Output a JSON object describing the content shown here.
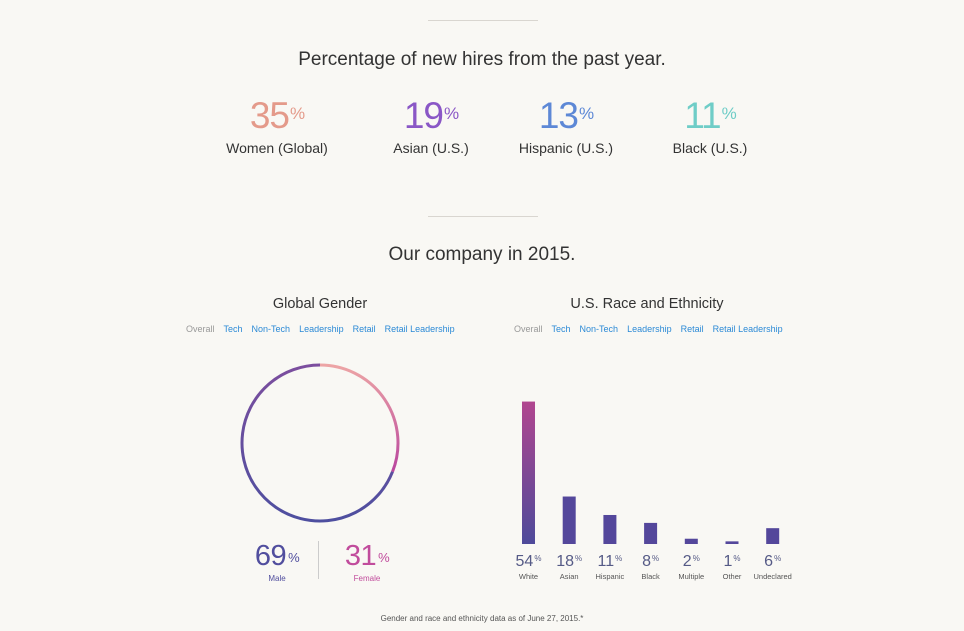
{
  "hires": {
    "heading": "Percentage of new hires from the past year.",
    "stats": [
      {
        "value": "35",
        "unit": "%",
        "label": "Women (Global)",
        "color": "#e49a8a"
      },
      {
        "value": "19",
        "unit": "%",
        "label": "Asian (U.S.)",
        "color": "#8a57c6"
      },
      {
        "value": "13",
        "unit": "%",
        "label": "Hispanic (U.S.)",
        "color": "#5d88d6"
      },
      {
        "value": "11",
        "unit": "%",
        "label": "Black (U.S.)",
        "color": "#6fcdc7"
      }
    ]
  },
  "company": {
    "heading": "Our company in 2015."
  },
  "gender": {
    "title": "Global Gender",
    "tabs": [
      "Overall",
      "Tech",
      "Non-Tech",
      "Leadership",
      "Retail",
      "Retail Leadership"
    ],
    "male": {
      "value": "69",
      "unit": "%",
      "label": "Male",
      "color": "#514e9e"
    },
    "female": {
      "value": "31",
      "unit": "%",
      "label": "Female",
      "color": "#c14c9c"
    }
  },
  "race": {
    "title": "U.S. Race and Ethnicity",
    "tabs": [
      "Overall",
      "Tech",
      "Non-Tech",
      "Leadership",
      "Retail",
      "Retail Leadership"
    ]
  },
  "footnote": "Gender and race and ethnicity data as of June 27, 2015.*",
  "chart_data": [
    {
      "type": "pie",
      "title": "Global Gender",
      "categories": [
        "Male",
        "Female"
      ],
      "values": [
        69,
        31
      ],
      "colors": [
        "#514e9e",
        "#c14c9c"
      ]
    },
    {
      "type": "bar",
      "title": "U.S. Race and Ethnicity",
      "categories": [
        "White",
        "Asian",
        "Hispanic",
        "Black",
        "Multiple",
        "Other",
        "Undeclared"
      ],
      "values": [
        54,
        18,
        11,
        8,
        2,
        1,
        6
      ],
      "unit": "%",
      "ylim": [
        0,
        69
      ]
    }
  ]
}
